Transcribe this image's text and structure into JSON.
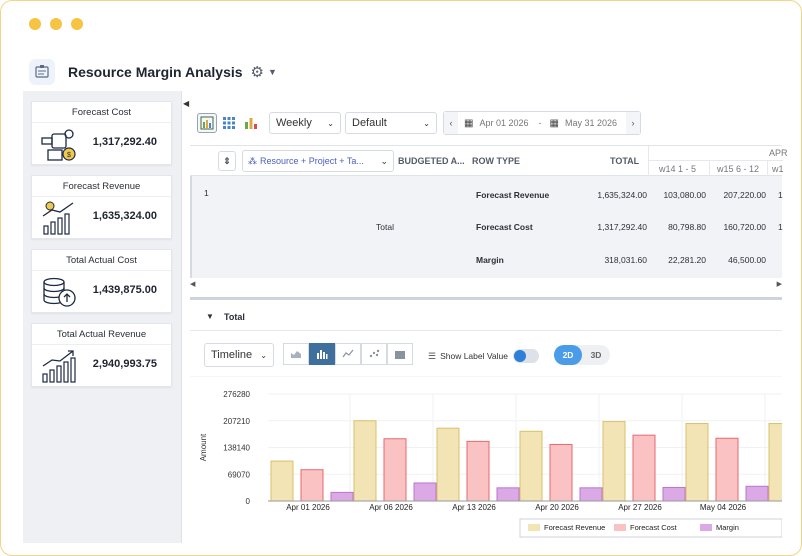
{
  "app": {
    "title": "Resource Margin Analysis"
  },
  "kpis": [
    {
      "title": "Forecast Cost",
      "value": "1,317,292.40"
    },
    {
      "title": "Forecast Revenue",
      "value": "1,635,324.00"
    },
    {
      "title": "Total Actual Cost",
      "value": "1,439,875.00"
    },
    {
      "title": "Total Actual Revenue",
      "value": "2,940,993.75"
    }
  ],
  "toolbar": {
    "period": "Weekly",
    "view": "Default",
    "date_from": "Apr 01 2026",
    "date_to": "May 31 2026",
    "date_sep": "-"
  },
  "grid": {
    "group_chip": "Resource + Project + Ta...",
    "columns": {
      "budgeted": "BUDGETED A...",
      "row_type": "ROW TYPE",
      "total": "TOTAL"
    },
    "month_label": "APR",
    "weeks": [
      "w14 1 - 5",
      "w15 6 - 12",
      "w1"
    ],
    "row_number": "1",
    "group_label": "Total",
    "rows": [
      {
        "type": "Forecast Revenue",
        "total": "1,635,324.00",
        "w14": "103,080.00",
        "w15": "207,220.00",
        "w16": "1"
      },
      {
        "type": "Forecast Cost",
        "total": "1,317,292.40",
        "w14": "80,798.80",
        "w15": "160,720.00",
        "w16": "1"
      },
      {
        "type": "Margin",
        "total": "318,031.60",
        "w14": "22,281.20",
        "w15": "46,500.00",
        "w16": ""
      }
    ]
  },
  "total_section": {
    "label": "Total"
  },
  "chart_controls": {
    "chart_kind": "Timeline",
    "show_label": "Show Label Value",
    "mode_2d": "2D",
    "mode_3d": "3D"
  },
  "colors": {
    "revenue": "#f2e4b4",
    "cost": "#fbc2c4",
    "margin": "#dba9e6",
    "accent": "#4a9be8"
  },
  "chart_data": {
    "type": "bar",
    "ylabel": "Amount",
    "xlabel": "",
    "ylim": [
      0,
      276280
    ],
    "yticks": [
      0,
      69070,
      138140,
      207210,
      276280
    ],
    "categories": [
      "Apr 01 2026",
      "Apr 06 2026",
      "Apr 13 2026",
      "Apr 20 2026",
      "Apr 27 2026",
      "May 04 2026",
      ""
    ],
    "series": [
      {
        "name": "Forecast Revenue",
        "values": [
          103080,
          207220,
          188000,
          180000,
          205000,
          200000,
          200000
        ]
      },
      {
        "name": "Forecast Cost",
        "values": [
          80798.8,
          160720,
          154000,
          146000,
          170000,
          162000,
          null
        ]
      },
      {
        "name": "Margin",
        "values": [
          22281.2,
          46500,
          34000,
          34000,
          35000,
          38000,
          null
        ]
      }
    ],
    "legend": "bottom-right"
  }
}
